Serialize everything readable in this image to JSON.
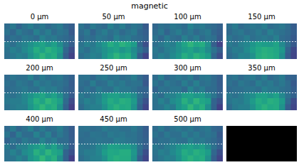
{
  "chart_data": {
    "type": "heatmap",
    "title": "magnetic",
    "color": "viridis",
    "clim": [
      0,
      1
    ],
    "xlim": [
      0,
      12
    ],
    "ylim": [
      0,
      6
    ],
    "hline": 3,
    "tick_labels": false,
    "panels": [
      {
        "title": "0 μm",
        "cells": [
          [
            0.35,
            0.4,
            0.32,
            0.38,
            0.42,
            0.36,
            0.4,
            0.34,
            0.38,
            0.41,
            0.33,
            0.3
          ],
          [
            0.38,
            0.33,
            0.41,
            0.36,
            0.34,
            0.43,
            0.37,
            0.42,
            0.35,
            0.39,
            0.36,
            0.28
          ],
          [
            0.33,
            0.37,
            0.35,
            0.4,
            0.38,
            0.35,
            0.44,
            0.39,
            0.41,
            0.36,
            0.34,
            0.31
          ],
          [
            0.4,
            0.36,
            0.42,
            0.45,
            0.5,
            0.55,
            0.58,
            0.52,
            0.56,
            0.48,
            0.38,
            0.3
          ],
          [
            0.38,
            0.43,
            0.4,
            0.47,
            0.53,
            0.62,
            0.57,
            0.64,
            0.6,
            0.55,
            0.33,
            0.24
          ],
          [
            0.36,
            0.4,
            0.44,
            0.42,
            0.51,
            0.58,
            0.65,
            0.59,
            0.62,
            0.5,
            0.3,
            0.2
          ]
        ]
      },
      {
        "title": "50 μm",
        "cells": [
          [
            0.38,
            0.33,
            0.41,
            0.36,
            0.34,
            0.43,
            0.37,
            0.42,
            0.35,
            0.39,
            0.36,
            0.28
          ],
          [
            0.35,
            0.4,
            0.32,
            0.38,
            0.42,
            0.36,
            0.4,
            0.34,
            0.38,
            0.41,
            0.33,
            0.3
          ],
          [
            0.33,
            0.37,
            0.35,
            0.4,
            0.38,
            0.35,
            0.44,
            0.39,
            0.41,
            0.36,
            0.34,
            0.31
          ],
          [
            0.38,
            0.43,
            0.4,
            0.47,
            0.53,
            0.62,
            0.57,
            0.64,
            0.6,
            0.55,
            0.33,
            0.24
          ],
          [
            0.4,
            0.36,
            0.42,
            0.45,
            0.5,
            0.55,
            0.58,
            0.52,
            0.56,
            0.48,
            0.38,
            0.3
          ],
          [
            0.36,
            0.4,
            0.44,
            0.42,
            0.51,
            0.58,
            0.65,
            0.59,
            0.62,
            0.5,
            0.3,
            0.2
          ]
        ]
      },
      {
        "title": "100 μm",
        "cells": [
          [
            0.33,
            0.37,
            0.35,
            0.4,
            0.38,
            0.35,
            0.44,
            0.39,
            0.41,
            0.36,
            0.34,
            0.31
          ],
          [
            0.35,
            0.4,
            0.32,
            0.38,
            0.42,
            0.36,
            0.4,
            0.34,
            0.38,
            0.41,
            0.33,
            0.3
          ],
          [
            0.38,
            0.33,
            0.41,
            0.36,
            0.34,
            0.43,
            0.37,
            0.42,
            0.35,
            0.39,
            0.36,
            0.28
          ],
          [
            0.36,
            0.4,
            0.44,
            0.42,
            0.51,
            0.58,
            0.65,
            0.59,
            0.62,
            0.5,
            0.3,
            0.2
          ],
          [
            0.4,
            0.36,
            0.42,
            0.45,
            0.5,
            0.55,
            0.58,
            0.52,
            0.56,
            0.48,
            0.38,
            0.3
          ],
          [
            0.38,
            0.43,
            0.4,
            0.47,
            0.53,
            0.62,
            0.57,
            0.64,
            0.6,
            0.55,
            0.33,
            0.24
          ]
        ]
      },
      {
        "title": "150 μm",
        "cells": [
          [
            0.36,
            0.41,
            0.34,
            0.37,
            0.4,
            0.38,
            0.42,
            0.35,
            0.37,
            0.4,
            0.35,
            0.29
          ],
          [
            0.34,
            0.38,
            0.4,
            0.35,
            0.37,
            0.41,
            0.36,
            0.43,
            0.39,
            0.37,
            0.34,
            0.3
          ],
          [
            0.39,
            0.35,
            0.37,
            0.42,
            0.36,
            0.39,
            0.41,
            0.38,
            0.43,
            0.35,
            0.33,
            0.28
          ],
          [
            0.41,
            0.38,
            0.43,
            0.46,
            0.52,
            0.57,
            0.55,
            0.54,
            0.58,
            0.47,
            0.36,
            0.28
          ],
          [
            0.37,
            0.42,
            0.41,
            0.48,
            0.55,
            0.6,
            0.63,
            0.61,
            0.59,
            0.53,
            0.32,
            0.22
          ],
          [
            0.35,
            0.39,
            0.45,
            0.44,
            0.5,
            0.61,
            0.64,
            0.62,
            0.6,
            0.49,
            0.29,
            0.21
          ]
        ]
      },
      {
        "title": "200 μm",
        "cells": [
          [
            0.34,
            0.39,
            0.36,
            0.37,
            0.43,
            0.35,
            0.41,
            0.36,
            0.39,
            0.4,
            0.34,
            0.31
          ],
          [
            0.37,
            0.35,
            0.4,
            0.38,
            0.35,
            0.42,
            0.38,
            0.4,
            0.36,
            0.38,
            0.35,
            0.29
          ],
          [
            0.35,
            0.36,
            0.38,
            0.41,
            0.37,
            0.36,
            0.43,
            0.4,
            0.42,
            0.37,
            0.33,
            0.3
          ],
          [
            0.39,
            0.37,
            0.41,
            0.46,
            0.51,
            0.56,
            0.59,
            0.53,
            0.57,
            0.49,
            0.37,
            0.29
          ],
          [
            0.4,
            0.42,
            0.42,
            0.46,
            0.54,
            0.63,
            0.58,
            0.66,
            0.61,
            0.56,
            0.34,
            0.23
          ],
          [
            0.37,
            0.41,
            0.43,
            0.43,
            0.52,
            0.59,
            0.66,
            0.6,
            0.63,
            0.51,
            0.31,
            0.19
          ]
        ]
      },
      {
        "title": "250 μm",
        "cells": [
          [
            0.37,
            0.38,
            0.33,
            0.39,
            0.41,
            0.37,
            0.39,
            0.35,
            0.37,
            0.42,
            0.34,
            0.29
          ],
          [
            0.36,
            0.34,
            0.42,
            0.35,
            0.36,
            0.42,
            0.38,
            0.41,
            0.36,
            0.38,
            0.37,
            0.27
          ],
          [
            0.34,
            0.38,
            0.34,
            0.41,
            0.37,
            0.36,
            0.43,
            0.4,
            0.4,
            0.37,
            0.33,
            0.32
          ],
          [
            0.41,
            0.37,
            0.41,
            0.44,
            0.52,
            0.56,
            0.57,
            0.53,
            0.55,
            0.49,
            0.37,
            0.31
          ],
          [
            0.39,
            0.44,
            0.41,
            0.46,
            0.54,
            0.61,
            0.58,
            0.63,
            0.61,
            0.54,
            0.34,
            0.25
          ],
          [
            0.35,
            0.41,
            0.43,
            0.43,
            0.5,
            0.59,
            0.64,
            0.6,
            0.61,
            0.51,
            0.31,
            0.21
          ]
        ]
      },
      {
        "title": "300 μm",
        "cells": [
          [
            0.35,
            0.42,
            0.33,
            0.37,
            0.4,
            0.37,
            0.41,
            0.33,
            0.39,
            0.4,
            0.34,
            0.3
          ],
          [
            0.39,
            0.34,
            0.4,
            0.37,
            0.35,
            0.42,
            0.36,
            0.43,
            0.36,
            0.38,
            0.35,
            0.29
          ],
          [
            0.32,
            0.38,
            0.36,
            0.39,
            0.39,
            0.34,
            0.45,
            0.38,
            0.42,
            0.35,
            0.35,
            0.3
          ],
          [
            0.39,
            0.35,
            0.43,
            0.44,
            0.49,
            0.56,
            0.57,
            0.53,
            0.55,
            0.47,
            0.39,
            0.31
          ],
          [
            0.37,
            0.44,
            0.39,
            0.48,
            0.52,
            0.63,
            0.56,
            0.65,
            0.59,
            0.56,
            0.32,
            0.25
          ],
          [
            0.37,
            0.39,
            0.45,
            0.41,
            0.52,
            0.57,
            0.66,
            0.58,
            0.63,
            0.49,
            0.31,
            0.19
          ]
        ]
      },
      {
        "title": "350 μm",
        "cells": [
          [
            0.36,
            0.39,
            0.34,
            0.38,
            0.41,
            0.36,
            0.42,
            0.34,
            0.37,
            0.41,
            0.32,
            0.31
          ],
          [
            0.37,
            0.34,
            0.4,
            0.37,
            0.35,
            0.42,
            0.38,
            0.41,
            0.36,
            0.4,
            0.35,
            0.28
          ],
          [
            0.34,
            0.36,
            0.36,
            0.39,
            0.39,
            0.36,
            0.43,
            0.4,
            0.4,
            0.37,
            0.35,
            0.3
          ],
          [
            0.4,
            0.37,
            0.41,
            0.46,
            0.49,
            0.56,
            0.57,
            0.53,
            0.57,
            0.47,
            0.37,
            0.31
          ],
          [
            0.39,
            0.42,
            0.41,
            0.46,
            0.54,
            0.61,
            0.58,
            0.63,
            0.61,
            0.54,
            0.34,
            0.23
          ],
          [
            0.35,
            0.41,
            0.43,
            0.43,
            0.5,
            0.59,
            0.64,
            0.6,
            0.61,
            0.51,
            0.29,
            0.21
          ]
        ]
      },
      {
        "title": "400 μm",
        "cells": [
          [
            0.34,
            0.41,
            0.33,
            0.37,
            0.43,
            0.35,
            0.41,
            0.35,
            0.37,
            0.42,
            0.34,
            0.29
          ],
          [
            0.39,
            0.32,
            0.42,
            0.35,
            0.35,
            0.44,
            0.36,
            0.43,
            0.34,
            0.4,
            0.35,
            0.29
          ],
          [
            0.32,
            0.38,
            0.34,
            0.41,
            0.37,
            0.36,
            0.45,
            0.38,
            0.42,
            0.35,
            0.35,
            0.3
          ],
          [
            0.41,
            0.35,
            0.43,
            0.44,
            0.51,
            0.54,
            0.59,
            0.51,
            0.57,
            0.47,
            0.39,
            0.29
          ],
          [
            0.37,
            0.44,
            0.39,
            0.48,
            0.52,
            0.63,
            0.56,
            0.65,
            0.59,
            0.56,
            0.32,
            0.25
          ],
          [
            0.37,
            0.39,
            0.45,
            0.41,
            0.52,
            0.57,
            0.66,
            0.58,
            0.63,
            0.49,
            0.31,
            0.19
          ]
        ]
      },
      {
        "title": "450 μm",
        "cells": [
          [
            0.37,
            0.38,
            0.35,
            0.36,
            0.41,
            0.38,
            0.39,
            0.36,
            0.36,
            0.4,
            0.35,
            0.29
          ],
          [
            0.36,
            0.35,
            0.39,
            0.38,
            0.36,
            0.41,
            0.39,
            0.4,
            0.37,
            0.38,
            0.34,
            0.3
          ],
          [
            0.35,
            0.36,
            0.37,
            0.39,
            0.38,
            0.37,
            0.42,
            0.41,
            0.39,
            0.38,
            0.34,
            0.31
          ],
          [
            0.39,
            0.38,
            0.4,
            0.46,
            0.5,
            0.57,
            0.56,
            0.54,
            0.55,
            0.49,
            0.37,
            0.3
          ],
          [
            0.39,
            0.42,
            0.42,
            0.46,
            0.55,
            0.6,
            0.59,
            0.62,
            0.62,
            0.53,
            0.35,
            0.24
          ],
          [
            0.36,
            0.4,
            0.43,
            0.44,
            0.5,
            0.6,
            0.63,
            0.61,
            0.61,
            0.51,
            0.3,
            0.21
          ]
        ]
      },
      {
        "title": "500 μm",
        "cells": [
          [
            0.35,
            0.4,
            0.34,
            0.38,
            0.4,
            0.37,
            0.4,
            0.35,
            0.38,
            0.4,
            0.33,
            0.31
          ],
          [
            0.38,
            0.34,
            0.4,
            0.36,
            0.36,
            0.42,
            0.37,
            0.41,
            0.36,
            0.39,
            0.36,
            0.28
          ],
          [
            0.34,
            0.37,
            0.36,
            0.4,
            0.37,
            0.36,
            0.43,
            0.39,
            0.41,
            0.37,
            0.34,
            0.3
          ],
          [
            0.4,
            0.37,
            0.42,
            0.45,
            0.51,
            0.55,
            0.57,
            0.53,
            0.56,
            0.48,
            0.37,
            0.3
          ],
          [
            0.38,
            0.43,
            0.41,
            0.47,
            0.53,
            0.61,
            0.58,
            0.63,
            0.6,
            0.55,
            0.33,
            0.24
          ],
          [
            0.36,
            0.4,
            0.44,
            0.43,
            0.51,
            0.59,
            0.64,
            0.6,
            0.62,
            0.5,
            0.3,
            0.2
          ]
        ]
      }
    ]
  }
}
